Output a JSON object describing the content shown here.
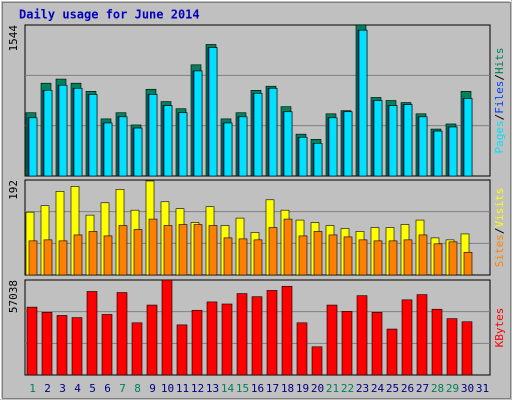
{
  "chart_data": [
    {
      "type": "bar",
      "title": "Daily usage for June 2014",
      "ylim": [
        0,
        1544
      ],
      "yticks": [
        1544
      ],
      "grid": true,
      "legend_separator": "/",
      "series": [
        {
          "name": "Hits",
          "color": "#00805C",
          "values": [
            647,
            949,
            991,
            949,
            866,
            584,
            647,
            522,
            887,
            761,
            688,
            1137,
            1345,
            584,
            647,
            876,
            918,
            709,
            428,
            375,
            636,
            668,
            1544,
            803,
            772,
            751,
            636,
            480,
            532,
            866,
            0
          ]
        },
        {
          "name": "Files",
          "color": "#0040FF",
          "values": [
            595,
            876,
            928,
            897,
            834,
            542,
            605,
            490,
            834,
            720,
            647,
            1074,
            1314,
            542,
            605,
            845,
            897,
            657,
            396,
            334,
            595,
            657,
            1491,
            772,
            720,
            730,
            605,
            459,
            501,
            793,
            0
          ]
        },
        {
          "name": "Pages",
          "color": "#00E0FF",
          "values": [
            595,
            876,
            928,
            897,
            834,
            542,
            605,
            490,
            834,
            720,
            647,
            1074,
            1314,
            542,
            605,
            845,
            897,
            657,
            396,
            334,
            595,
            657,
            1491,
            772,
            720,
            730,
            605,
            459,
            501,
            793,
            0
          ]
        }
      ]
    },
    {
      "type": "bar",
      "ylim": [
        0,
        192
      ],
      "yticks": [
        192
      ],
      "grid": true,
      "legend_separator": "/",
      "series": [
        {
          "name": "Visits",
          "color": "#FFFF00",
          "values": [
            127,
            140,
            169,
            179,
            121,
            146,
            173,
            131,
            190,
            148,
            134,
            106,
            138,
            100,
            115,
            86,
            152,
            131,
            111,
            106,
            100,
            94,
            88,
            96,
            96,
            102,
            111,
            75,
            71,
            83,
            0
          ]
        },
        {
          "name": "Sites",
          "color": "#FF8000",
          "values": [
            69,
            71,
            69,
            81,
            88,
            79,
            100,
            92,
            113,
            100,
            102,
            102,
            100,
            75,
            73,
            71,
            96,
            113,
            79,
            88,
            81,
            77,
            71,
            69,
            69,
            71,
            81,
            63,
            67,
            46,
            0
          ]
        }
      ]
    },
    {
      "type": "bar",
      "ylim": [
        0,
        57038
      ],
      "yticks": [
        57038
      ],
      "grid": true,
      "categories": [
        "1",
        "2",
        "3",
        "4",
        "5",
        "6",
        "7",
        "8",
        "9",
        "10",
        "11",
        "12",
        "13",
        "14",
        "15",
        "16",
        "17",
        "18",
        "19",
        "20",
        "21",
        "22",
        "23",
        "24",
        "25",
        "26",
        "27",
        "28",
        "29",
        "30",
        "31"
      ],
      "category_colors": [
        "#00805C",
        "#000080",
        "#000080",
        "#000080",
        "#000080",
        "#000080",
        "#00805C",
        "#00805C",
        "#000080",
        "#000080",
        "#000080",
        "#000080",
        "#000080",
        "#00805C",
        "#00805C",
        "#000080",
        "#000080",
        "#000080",
        "#000080",
        "#000080",
        "#00805C",
        "#00805C",
        "#000080",
        "#000080",
        "#000080",
        "#000080",
        "#000080",
        "#00805C",
        "#00805C",
        "#000080",
        "#000080"
      ],
      "series": [
        {
          "name": "KBytes",
          "color": "#FF0000",
          "values": [
            40742,
            37608,
            35728,
            34474,
            50144,
            36354,
            49517,
            31340,
            41996,
            57038,
            30086,
            38862,
            43876,
            42622,
            48890,
            47010,
            50771,
            53278,
            31340,
            16924,
            41996,
            38235,
            47637,
            37608,
            27579,
            45130,
            48264,
            39488,
            33847,
            31967,
            0
          ]
        }
      ]
    }
  ]
}
